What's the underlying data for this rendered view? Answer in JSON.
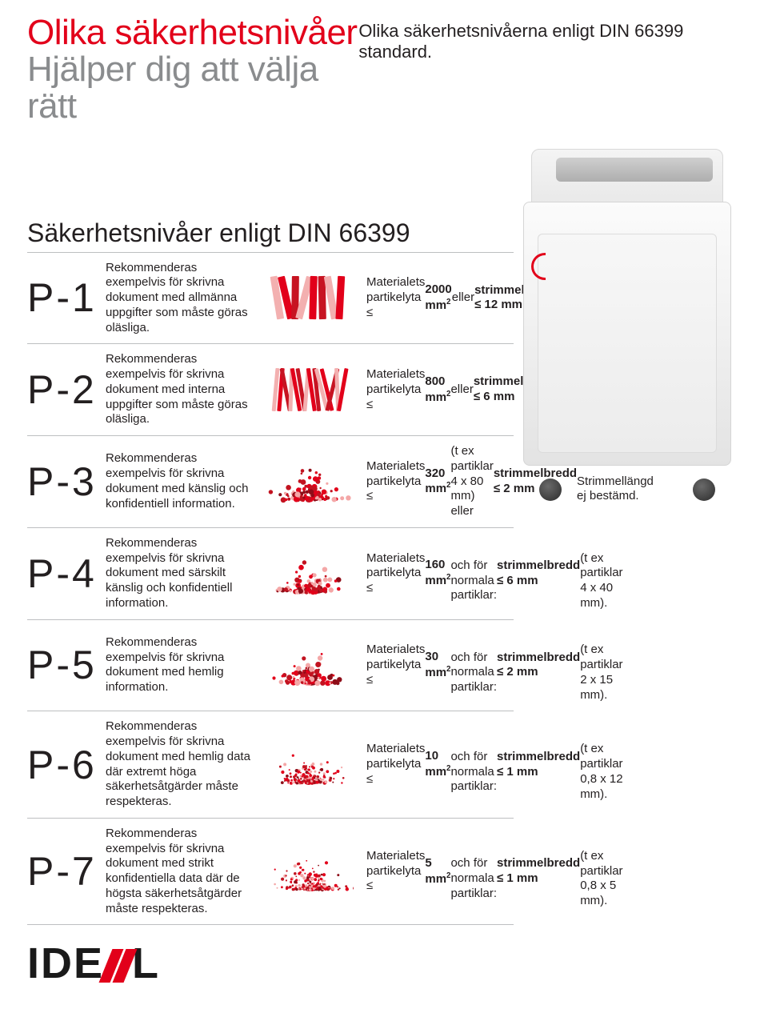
{
  "header": {
    "title": "Olika säkerhetsnivåer",
    "subtitle": "Hjälper dig att välja rätt",
    "standard": "Olika säkerhetsnivåerna enligt DIN 66399 standard."
  },
  "section_title": "Säkerhetsnivåer enligt DIN 66399",
  "colors": {
    "accent": "#e2001a",
    "text": "#231f20",
    "muted": "#8a8c8e",
    "rule": "#bdbfc1",
    "background": "#ffffff"
  },
  "typography": {
    "title_fontsize": 44,
    "section_fontsize": 32,
    "code_fontsize": 50,
    "body_fontsize": 15
  },
  "levels": [
    {
      "code": "P-1",
      "description": "Rekommenderas exempelvis för skrivna dokument med allmänna uppgifter som måste göras oläsliga.",
      "spec_html": "Materialets partikelyta<br>≤ <strong>2000 mm<sup>2</sup></strong> eller<br><strong>strimmelbredd ≤ 12 mm</strong><br>Strimmellängd ej bestämd.",
      "shred_type": "strips-wide"
    },
    {
      "code": "P-2",
      "description": "Rekommenderas exempelvis för skrivna dokument med interna uppgifter som måste göras oläsliga.",
      "spec_html": "Materialets partikelyta<br>≤ <strong>800 mm<sup>2</sup></strong> eller<br><strong>strimmelbredd ≤ 6 mm</strong><br>Strimmellängd ej bestämd",
      "shred_type": "strips-narrow"
    },
    {
      "code": "P-3",
      "description": "Rekommenderas exempelvis för skrivna dokument med känslig och konfidentiell information.",
      "spec_html": "Materialets partikelyta<br>≤ <strong>320 mm<sup>2</sup></strong> (t ex partiklar 4 x 80 mm) eller<br><strong>strimmelbredd ≤ 2 mm</strong><br>Strimmellängd ej bestämd.",
      "shred_type": "mound"
    },
    {
      "code": "P-4",
      "description": "Rekommenderas exempelvis för skrivna dokument med särskilt känslig och konfidentiell information.",
      "spec_html": "Materialets partikelyta<br>≤ <strong>160 mm<sup>2</sup></strong><br>och för normala partiklar:<br><strong>strimmelbredd ≤ 6 mm</strong><br>(t ex partiklar 4 x 40 mm).",
      "shred_type": "mound"
    },
    {
      "code": "P-5",
      "description": "Rekommenderas exempelvis för skrivna dokument med hemlig information.",
      "spec_html": "Materialets partikelyta<br>≤ <strong>30 mm<sup>2</sup></strong><br>och för normala partiklar:<br><strong>strimmelbredd ≤ 2 mm</strong><br>(t ex partiklar 2 x 15 mm).",
      "shred_type": "mound"
    },
    {
      "code": "P-6",
      "description": "Rekommenderas exempelvis för skrivna dokument med hemlig data där extremt höga säkerhetsåtgärder måste respekteras.",
      "spec_html": "Materialets partikelyta<br>≤ <strong>10 mm<sup>2</sup></strong><br>och för normala partiklar:<br><strong>strimmelbredd ≤ 1 mm</strong><br>(t ex partiklar 0,8 x 12 mm).",
      "shred_type": "fine"
    },
    {
      "code": "P-7",
      "description": "Rekommenderas exempelvis för skrivna dokument med strikt konfidentiella data där de högsta säkerhetsåtgärder måste respekteras.",
      "spec_html": "Materialets partikelyta<br>≤ <strong>5 mm<sup>2</sup></strong><br>och för normala partiklar:<br><strong>strimmelbredd ≤ 1 mm</strong><br>(t ex partiklar 0,8 x 5 mm).",
      "shred_type": "fine"
    }
  ],
  "logo": {
    "pre": "IDE",
    "post": "L"
  }
}
